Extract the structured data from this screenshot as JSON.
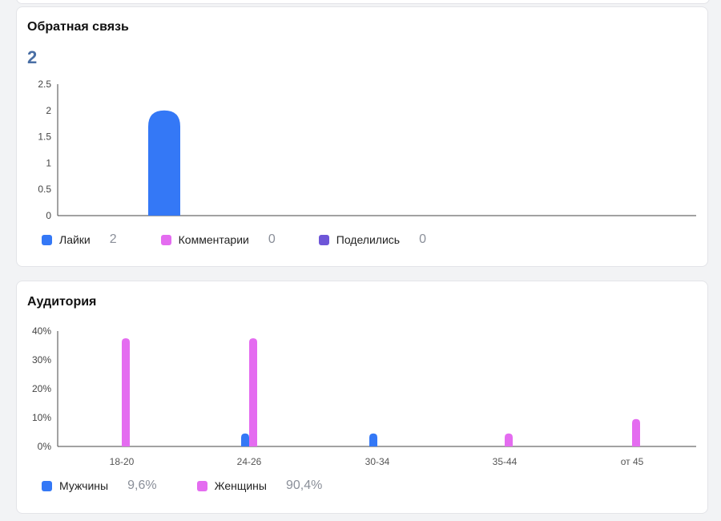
{
  "feedback": {
    "title": "Обратная связь",
    "total": "2",
    "legend": [
      {
        "label": "Лайки",
        "value": "2",
        "color": "#3478f6"
      },
      {
        "label": "Комментарии",
        "value": "0",
        "color": "#e46cf0"
      },
      {
        "label": "Поделились",
        "value": "0",
        "color": "#6e56d8"
      }
    ]
  },
  "audience": {
    "title": "Аудитория",
    "legend": [
      {
        "label": "Мужчины",
        "value": "9,6%",
        "color": "#3478f6"
      },
      {
        "label": "Женщины",
        "value": "90,4%",
        "color": "#e46cf0"
      }
    ]
  },
  "chart_data": [
    {
      "type": "bar",
      "categories": [
        "Лайки",
        "Комментарии",
        "Поделились"
      ],
      "series": [
        {
          "name": "Обратная связь",
          "values": [
            2,
            0,
            0
          ]
        }
      ],
      "ylim": [
        0,
        2.5
      ],
      "yticks": [
        "0",
        "0.5",
        "1",
        "1.5",
        "2",
        "2.5"
      ],
      "grid": false
    },
    {
      "type": "bar",
      "categories": [
        "18-20",
        "24-26",
        "30-34",
        "35-44",
        "от 45"
      ],
      "series": [
        {
          "name": "Мужчины",
          "values": [
            0,
            4.5,
            4.5,
            0,
            0
          ],
          "color": "#3478f6"
        },
        {
          "name": "Женщины",
          "values": [
            37.5,
            37.5,
            0,
            4.5,
            9.5
          ],
          "color": "#e46cf0"
        }
      ],
      "ylim": [
        0,
        40
      ],
      "yticks": [
        "0%",
        "10%",
        "20%",
        "30%",
        "40%"
      ],
      "grid": false
    }
  ]
}
